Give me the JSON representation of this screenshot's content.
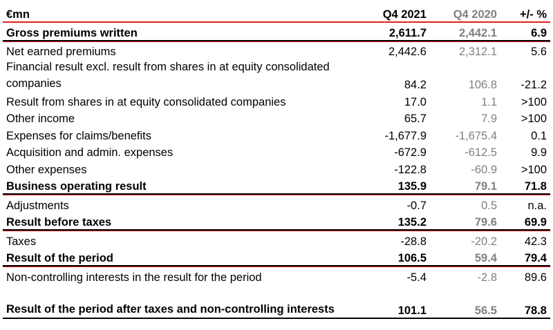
{
  "header": {
    "unit": "€mn",
    "col_current": "Q4 2021",
    "col_previous": "Q4 2020",
    "col_change": "+/- %"
  },
  "rows": [
    {
      "label": "Gross premiums written",
      "cur": "2,611.7",
      "prev": "2,442.1",
      "chg": "6.9",
      "bold": true
    },
    {
      "label": "Net earned premiums",
      "cur": "2,442.6",
      "prev": "2,312.1",
      "chg": "5.6",
      "bold": false
    },
    {
      "label": "Financial result excl. result from shares in at equity consolidated companies",
      "cur": "84.2",
      "prev": "106.8",
      "chg": "-21.2",
      "bold": false
    },
    {
      "label": "Result from shares in at equity consolidated companies",
      "cur": "17.0",
      "prev": "1.1",
      "chg": ">100",
      "bold": false
    },
    {
      "label": "Other income",
      "cur": "65.7",
      "prev": "7.9",
      "chg": ">100",
      "bold": false
    },
    {
      "label": "Expenses for claims/benefits",
      "cur": "-1,677.9",
      "prev": "-1,675.4",
      "chg": "0.1",
      "bold": false
    },
    {
      "label": "Acquisition and admin. expenses",
      "cur": "-672.9",
      "prev": "-612.5",
      "chg": "9.9",
      "bold": false
    },
    {
      "label": "Other expenses",
      "cur": "-122.8",
      "prev": "-60.9",
      "chg": ">100",
      "bold": false
    },
    {
      "label": "Business operating result",
      "cur": "135.9",
      "prev": "79.1",
      "chg": "71.8",
      "bold": true
    },
    {
      "label": "Adjustments",
      "cur": "-0.7",
      "prev": "0.5",
      "chg": "n.a.",
      "bold": false
    },
    {
      "label": "Result before taxes",
      "cur": "135.2",
      "prev": "79.6",
      "chg": "69.9",
      "bold": true
    },
    {
      "label": "Taxes",
      "cur": "-28.8",
      "prev": "-20.2",
      "chg": "42.3",
      "bold": false
    },
    {
      "label": "Result of the period",
      "cur": "106.5",
      "prev": "59.4",
      "chg": "79.4",
      "bold": true
    },
    {
      "label": "Non-controlling interests in the result for the period",
      "cur": "-5.4",
      "prev": "-2.8",
      "chg": "89.6",
      "bold": false
    },
    {
      "label": "Result of the period after taxes and non-controlling interests",
      "cur": "101.1",
      "prev": "56.5",
      "chg": "78.8",
      "bold": true
    }
  ],
  "colors": {
    "previous_year_text": "#808080",
    "separator_red": "#e0201f",
    "rule_black": "#000000"
  }
}
